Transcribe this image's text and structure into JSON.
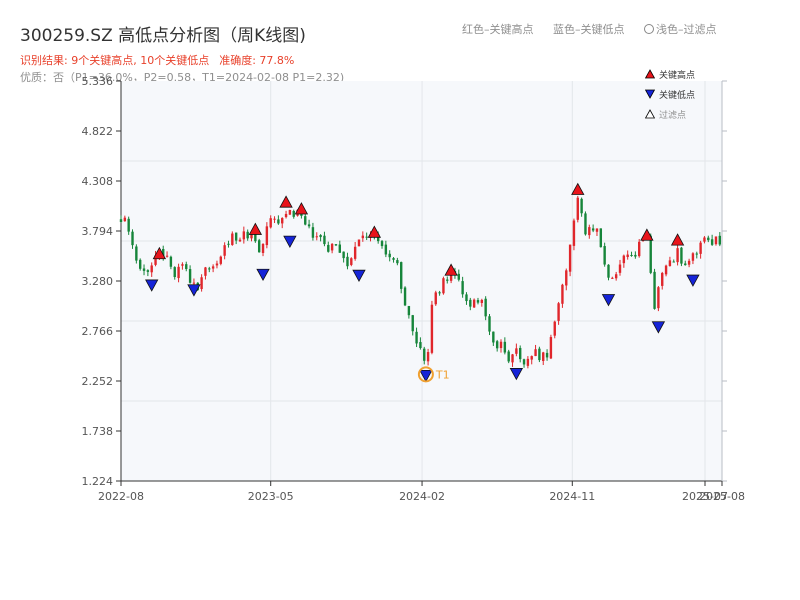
{
  "header": {
    "title": "300259.SZ 高低点分析图（周K线图)",
    "result_prefix": "识别结果: ",
    "result_counts": "9个关键高点, 10个关键低点",
    "accuracy": "准确度: 77.8%",
    "quality": "优质：否（P1=36.0%，P2=0.58，T1=2024-02-08 P1=2.32)"
  },
  "top_legend": {
    "red": "红色–关键高点",
    "blue": "蓝色–关键低点",
    "light": "浅色–过滤点"
  },
  "legend": {
    "high": "关键高点",
    "low": "关键低点",
    "filtered": "过滤点"
  },
  "colors": {
    "up": "#e0262b",
    "down": "#16853a",
    "high_marker": "#e8141b",
    "low_marker": "#1524d8",
    "t1_ring": "#f0a030",
    "plot_bg": "#f6f8fb",
    "grid": "#e3e6ea"
  },
  "chart_data": {
    "type": "candlestick",
    "x_axis": {
      "type": "date",
      "range": [
        "2022-08-01",
        "2025-08-01"
      ],
      "ticks": [
        "2022-08",
        "2023-05",
        "2024-02",
        "2024-11",
        "2025-07",
        "2025-08"
      ]
    },
    "y_axis": {
      "range": [
        1.224,
        5.336
      ],
      "ticks": [
        "1.224",
        "1.738",
        "2.252",
        "2.766",
        "3.280",
        "3.794",
        "4.308",
        "4.822",
        "5.336"
      ]
    },
    "grid": true,
    "legend_position": "top-right",
    "price_series": [
      [
        "2022-08-01",
        3.93
      ],
      [
        "2022-08-15",
        3.8
      ],
      [
        "2022-08-29",
        3.55
      ],
      [
        "2022-09-12",
        3.35
      ],
      [
        "2022-09-26",
        3.45
      ],
      [
        "2022-10-10",
        3.55
      ],
      [
        "2022-10-24",
        3.48
      ],
      [
        "2022-11-07",
        3.38
      ],
      [
        "2022-11-21",
        3.46
      ],
      [
        "2022-12-05",
        3.3
      ],
      [
        "2022-12-19",
        3.24
      ],
      [
        "2023-01-02",
        3.35
      ],
      [
        "2023-01-16",
        3.42
      ],
      [
        "2023-01-30",
        3.58
      ],
      [
        "2023-02-13",
        3.72
      ],
      [
        "2023-02-27",
        3.7
      ],
      [
        "2023-03-13",
        3.74
      ],
      [
        "2023-03-27",
        3.8
      ],
      [
        "2023-04-10",
        3.55
      ],
      [
        "2023-04-24",
        3.8
      ],
      [
        "2023-05-08",
        3.95
      ],
      [
        "2023-05-22",
        3.9
      ],
      [
        "2023-06-05",
        4.05
      ],
      [
        "2023-06-19",
        3.95
      ],
      [
        "2023-07-03",
        3.88
      ],
      [
        "2023-07-17",
        3.75
      ],
      [
        "2023-07-31",
        3.7
      ],
      [
        "2023-08-14",
        3.6
      ],
      [
        "2023-08-28",
        3.66
      ],
      [
        "2023-09-11",
        3.55
      ],
      [
        "2023-09-25",
        3.45
      ],
      [
        "2023-10-09",
        3.7
      ],
      [
        "2023-10-23",
        3.78
      ],
      [
        "2023-11-06",
        3.73
      ],
      [
        "2023-11-20",
        3.65
      ],
      [
        "2023-12-04",
        3.58
      ],
      [
        "2023-12-18",
        3.45
      ],
      [
        "2024-01-01",
        3.0
      ],
      [
        "2024-01-15",
        2.78
      ],
      [
        "2024-01-29",
        2.62
      ],
      [
        "2024-02-08",
        2.4
      ],
      [
        "2024-02-19",
        3.0
      ],
      [
        "2024-03-04",
        3.22
      ],
      [
        "2024-03-18",
        3.34
      ],
      [
        "2024-04-01",
        3.4
      ],
      [
        "2024-04-15",
        3.2
      ],
      [
        "2024-04-29",
        3.05
      ],
      [
        "2024-05-13",
        3.1
      ],
      [
        "2024-05-27",
        2.95
      ],
      [
        "2024-06-10",
        2.7
      ],
      [
        "2024-06-24",
        2.6
      ],
      [
        "2024-07-08",
        2.45
      ],
      [
        "2024-07-22",
        2.52
      ],
      [
        "2024-08-05",
        2.45
      ],
      [
        "2024-08-19",
        2.55
      ],
      [
        "2024-09-02",
        2.5
      ],
      [
        "2024-09-16",
        2.55
      ],
      [
        "2024-09-30",
        2.85
      ],
      [
        "2024-10-14",
        3.3
      ],
      [
        "2024-10-28",
        3.6
      ],
      [
        "2024-11-11",
        4.18
      ],
      [
        "2024-11-25",
        3.7
      ],
      [
        "2024-12-09",
        3.85
      ],
      [
        "2024-12-23",
        3.65
      ],
      [
        "2025-01-06",
        3.25
      ],
      [
        "2025-01-20",
        3.35
      ],
      [
        "2025-02-03",
        3.5
      ],
      [
        "2025-02-17",
        3.55
      ],
      [
        "2025-03-03",
        3.62
      ],
      [
        "2025-03-17",
        3.7
      ],
      [
        "2025-03-31",
        3.05
      ],
      [
        "2025-04-14",
        3.3
      ],
      [
        "2025-04-28",
        3.5
      ],
      [
        "2025-05-12",
        3.55
      ],
      [
        "2025-05-26",
        3.45
      ],
      [
        "2025-06-09",
        3.5
      ],
      [
        "2025-06-23",
        3.65
      ],
      [
        "2025-07-07",
        3.72
      ],
      [
        "2025-07-31",
        3.68
      ]
    ],
    "key_highs": [
      [
        "2022-10-10",
        3.55
      ],
      [
        "2023-04-03",
        3.8
      ],
      [
        "2023-05-29",
        4.08
      ],
      [
        "2023-06-26",
        4.01
      ],
      [
        "2023-11-06",
        3.77
      ],
      [
        "2024-03-25",
        3.38
      ],
      [
        "2024-11-11",
        4.21
      ],
      [
        "2025-03-17",
        3.74
      ],
      [
        "2025-05-12",
        3.69
      ]
    ],
    "key_lows": [
      [
        "2022-09-26",
        3.25
      ],
      [
        "2022-12-12",
        3.2
      ],
      [
        "2023-04-17",
        3.36
      ],
      [
        "2023-06-05",
        3.7
      ],
      [
        "2023-10-09",
        3.35
      ],
      [
        "2024-02-08",
        2.32
      ],
      [
        "2024-07-22",
        2.34
      ],
      [
        "2025-01-06",
        3.1
      ],
      [
        "2025-04-07",
        2.82
      ],
      [
        "2025-06-09",
        3.3
      ]
    ],
    "annotations": [
      {
        "label": "T1",
        "date": "2024-02-08",
        "value": 2.32
      }
    ]
  }
}
